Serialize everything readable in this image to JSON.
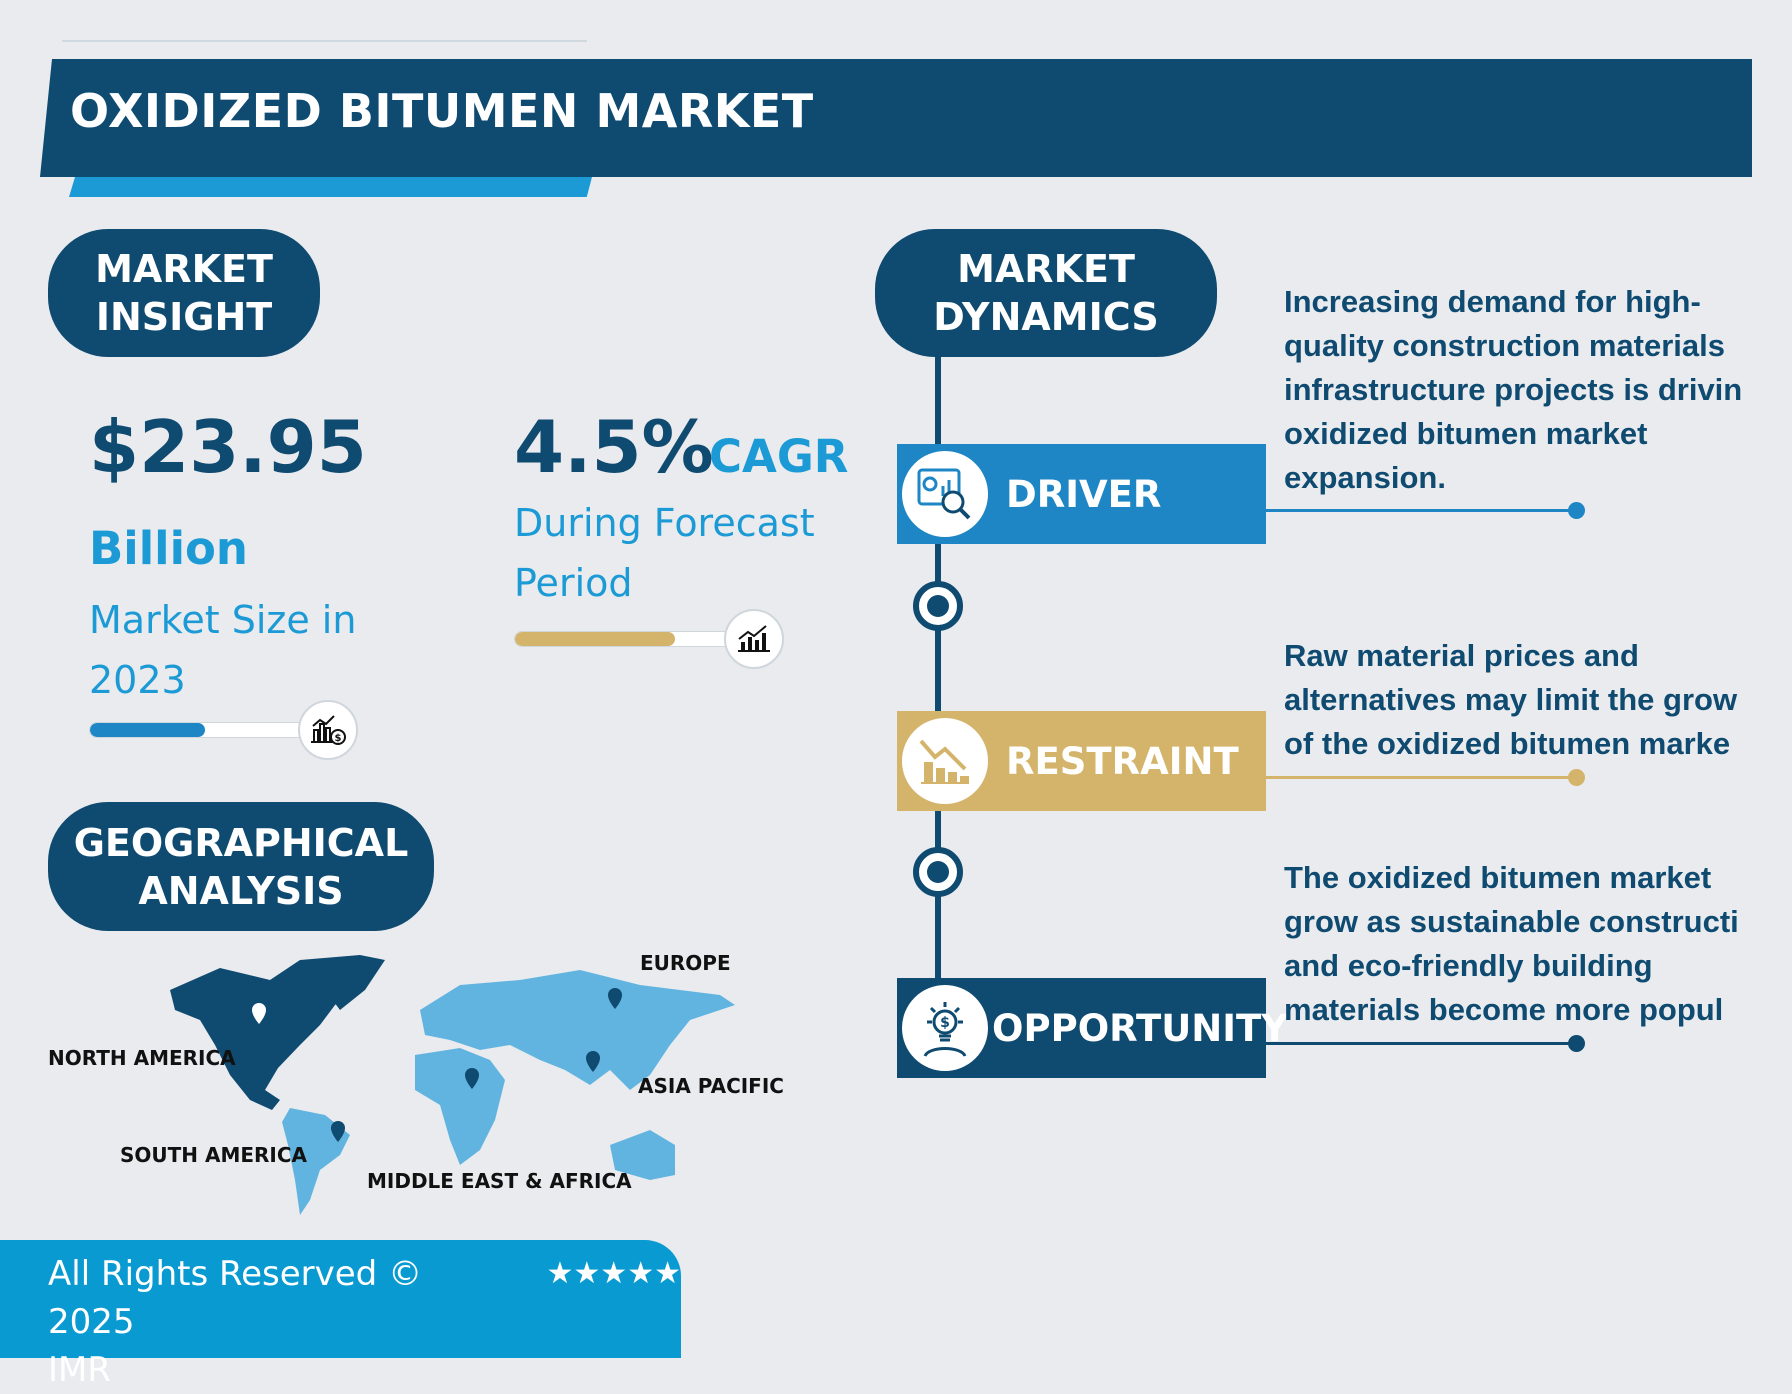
{
  "header": {
    "title": "OXIDIZED BITUMEN MARKET"
  },
  "insight": {
    "heading_line1": "MARKET",
    "heading_line2": "INSIGHT",
    "market_size": "$23.95",
    "unit": "Billion",
    "label_line1": "Market Size in",
    "label_line2": "2023",
    "size_bar_fraction": 0.48,
    "cagr": "4.5%",
    "cagr_label": "CAGR",
    "forecast_line1": "During Forecast",
    "forecast_line2": "Period",
    "cagr_bar_fraction": 0.67
  },
  "geo": {
    "heading_line1": "GEOGRAPHICAL",
    "heading_line2": "ANALYSIS",
    "regions": [
      "NORTH AMERICA",
      "EUROPE",
      "ASIA PACIFIC",
      "SOUTH AMERICA",
      "MIDDLE EAST & AFRICA"
    ]
  },
  "dynamics": {
    "heading_line1": "MARKET",
    "heading_line2": "DYNAMICS",
    "items": [
      {
        "label": "DRIVER",
        "color": "#1e86c4",
        "icon": "analytics-magnifier-icon",
        "text": [
          "Increasing demand for high-",
          "quality construction materials",
          "infrastructure projects is drivin",
          "oxidized bitumen market",
          "expansion."
        ]
      },
      {
        "label": "RESTRAINT",
        "color": "#d4b46a",
        "icon": "declining-chart-icon",
        "text": [
          "Raw material prices and",
          "alternatives may limit the grow",
          "of the oxidized bitumen marke"
        ]
      },
      {
        "label": "OPPORTUNITY",
        "color": "#0f4a70",
        "icon": "idea-bulb-dollar-icon",
        "text": [
          "The oxidized bitumen market",
          "grow as sustainable constructi",
          "and eco-friendly building",
          "materials become more popul"
        ]
      }
    ]
  },
  "footer": {
    "copyright": "All Rights Reserved © 2025",
    "brand": "IMR",
    "stars": "★★★★★"
  },
  "colors": {
    "navy": "#0f4a70",
    "blue": "#1b9ad6",
    "gold": "#d4b46a",
    "footer": "#0a9ad2"
  }
}
